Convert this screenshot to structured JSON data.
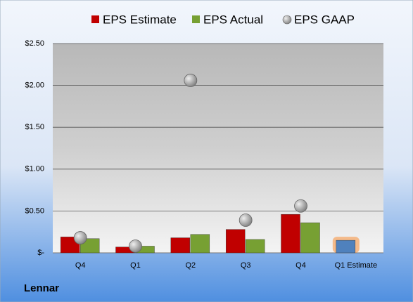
{
  "chart_data": {
    "type": "bar",
    "categories": [
      "Q4",
      "Q1",
      "Q2",
      "Q3",
      "Q4",
      "Q1 Estimate"
    ],
    "series": [
      {
        "name": "EPS Estimate",
        "color": "#c00000",
        "colors": [
          "#c00000",
          "#c00000",
          "#c00000",
          "#c00000",
          "#c00000",
          "#4f81bd"
        ],
        "glow_color": "#f79646",
        "values": [
          0.19,
          0.07,
          0.18,
          0.28,
          0.46,
          0.15
        ]
      },
      {
        "name": "EPS Actual",
        "color": "#77a033",
        "values": [
          0.17,
          0.08,
          0.22,
          0.16,
          0.36,
          null
        ]
      },
      {
        "name": "EPS GAAP",
        "color": "#a6a6a6",
        "type": "scatter",
        "values": [
          0.18,
          0.08,
          2.06,
          0.39,
          0.56,
          null
        ]
      }
    ],
    "ylim": [
      0,
      2.5
    ],
    "yticks": [
      {
        "value": 0,
        "label": "$-"
      },
      {
        "value": 0.5,
        "label": "$0.50"
      },
      {
        "value": 1,
        "label": "$1.00"
      },
      {
        "value": 1.5,
        "label": "$1.50"
      },
      {
        "value": 2,
        "label": "$2.00"
      },
      {
        "value": 2.5,
        "label": "$2.50"
      }
    ],
    "grid": true,
    "legend": "top",
    "footer_label": "Lennar"
  }
}
